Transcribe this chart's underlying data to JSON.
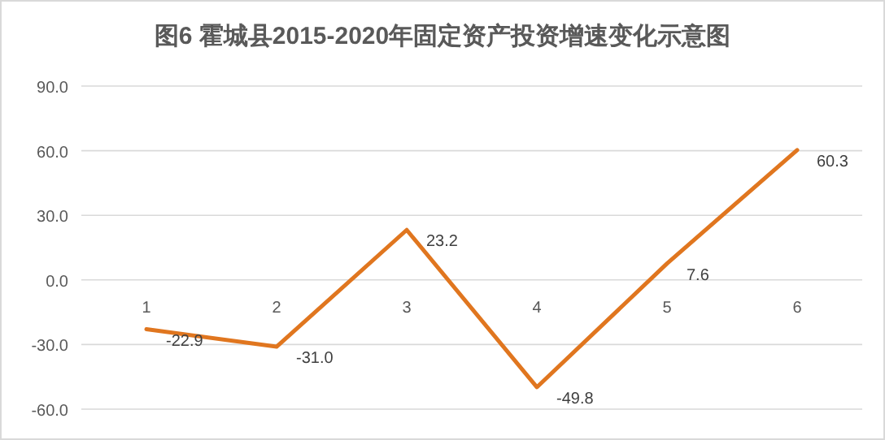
{
  "chart_data": {
    "type": "line",
    "title": "图6 霍城县2015-2020年固定资产投资增速变化示意图",
    "categories": [
      "1",
      "2",
      "3",
      "4",
      "5",
      "6"
    ],
    "series": [
      {
        "color": "#e0761f",
        "values": [
          -22.9,
          -31.0,
          23.2,
          -49.8,
          7.6,
          60.3
        ],
        "value_labels": [
          "-22.9",
          "-31.0",
          "23.2",
          "-49.8",
          "7.6",
          "60.3"
        ]
      }
    ],
    "ylim": [
      -60,
      90
    ],
    "yticks": [
      {
        "value": -60,
        "label": "-60.0"
      },
      {
        "value": -30,
        "label": "-30.0"
      },
      {
        "value": 0,
        "label": "0.0"
      },
      {
        "value": 30,
        "label": "30.0"
      },
      {
        "value": 60,
        "label": "60.0"
      },
      {
        "value": 90,
        "label": "90.0"
      }
    ],
    "grid": "y",
    "marker": "none",
    "line_style": "solid"
  }
}
